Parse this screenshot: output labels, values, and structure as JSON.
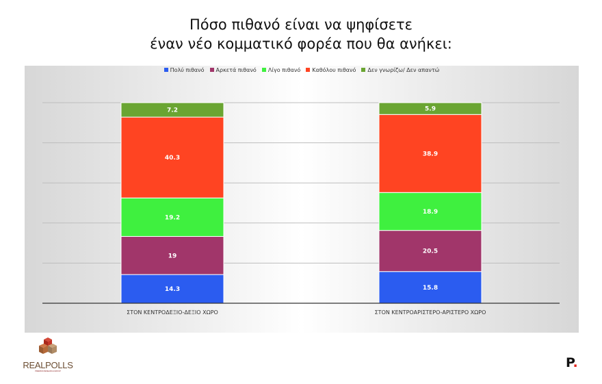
{
  "title_lines": [
    "Πόσο πιθανό είναι να ψηφίσετε",
    "έναν νέο κομματικό φορέα που θα ανήκει:"
  ],
  "logos": {
    "left_text": "REALPOLLS",
    "left_subtext": "PREMIUM RESEARCH GROUP",
    "right_text": "P",
    "right_dot": "."
  },
  "chart_data": {
    "type": "bar",
    "stacked": true,
    "title": "Πόσο πιθανό είναι να ψηφίσετε έναν νέο κομματικό φορέα που θα ανήκει:",
    "categories": [
      "ΣΤΟΝ ΚΕΝΤΡΟΔΕΞΙΟ-ΔΕΞΙΟ ΧΩΡΟ",
      "ΣΤΟΝ ΚΕΝΤΡΟΑΡΙΣΤΕΡΟ-ΑΡΙΣΤΕΡΟ ΧΩΡΟ"
    ],
    "series": [
      {
        "name": "Πολύ πιθανό",
        "color": "#2b5cf0",
        "values": [
          14.3,
          15.8
        ]
      },
      {
        "name": "Αρκετά πιθανό",
        "color": "#a1366a",
        "values": [
          19,
          20.5
        ]
      },
      {
        "name": "Λίγο πιθανό",
        "color": "#3ff03f",
        "values": [
          19.2,
          18.9
        ]
      },
      {
        "name": "Καθόλου πιθανό",
        "color": "#ff4422",
        "values": [
          40.3,
          38.9
        ]
      },
      {
        "name": "Δεν γνωρίζω/ Δεν απαντώ",
        "color": "#6aa532",
        "values": [
          7.2,
          5.9
        ]
      }
    ],
    "ylim": [
      0,
      100
    ],
    "grid": true,
    "legend_position": "top"
  }
}
